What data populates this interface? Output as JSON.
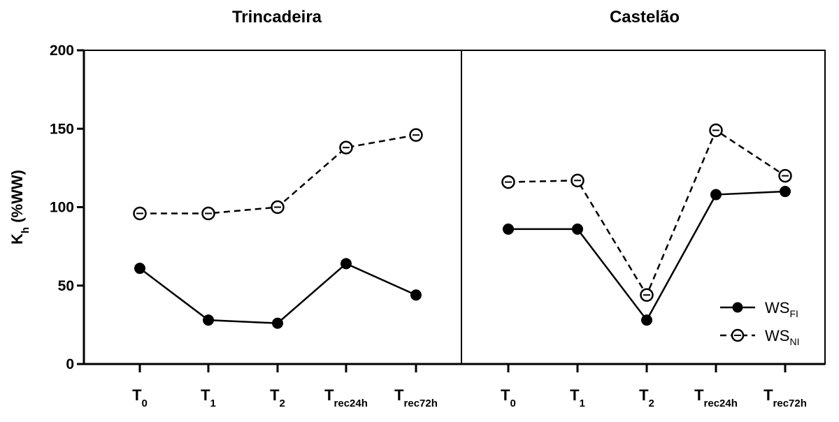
{
  "chart_data": {
    "type": "line",
    "ylabel": {
      "main": "K",
      "sub": "h",
      "rest": " (%WW)"
    },
    "ylim": [
      0,
      200
    ],
    "yticks": [
      "0",
      "50",
      "100",
      "150",
      "200"
    ],
    "ytick_values": [
      0,
      50,
      100,
      150,
      200
    ],
    "grid": false,
    "legend": {
      "placement": "bottom-right",
      "entries": [
        {
          "main": "WS",
          "sub": "FI",
          "style": "solid-filled"
        },
        {
          "main": "WS",
          "sub": "NI",
          "style": "dashed-open"
        }
      ]
    },
    "categories": [
      {
        "main": "T",
        "sub": "0"
      },
      {
        "main": "T",
        "sub": "1"
      },
      {
        "main": "T",
        "sub": "2"
      },
      {
        "main": "T",
        "sub": "rec24h"
      },
      {
        "main": "T",
        "sub": "rec72h"
      }
    ],
    "panels": [
      {
        "title": "Trincadeira",
        "series": [
          {
            "legend_index": 0,
            "values": [
              61,
              28,
              26,
              64,
              44
            ]
          },
          {
            "legend_index": 1,
            "values": [
              96,
              96,
              100,
              138,
              146
            ]
          }
        ]
      },
      {
        "title": "Castelão",
        "series": [
          {
            "legend_index": 0,
            "values": [
              86,
              86,
              28,
              108,
              110
            ]
          },
          {
            "legend_index": 1,
            "values": [
              116,
              117,
              44,
              149,
              120
            ]
          }
        ]
      }
    ]
  },
  "colors": {
    "line": "#000000",
    "open_marker_fill": "#ffffff"
  }
}
